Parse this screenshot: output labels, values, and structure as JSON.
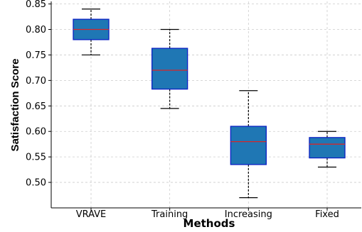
{
  "chart_data": {
    "type": "box",
    "title": "",
    "xlabel": "Methods",
    "ylabel": "Satisfaction Score",
    "categories": [
      "VRAVE",
      "Training",
      "Increasing",
      "Fixed"
    ],
    "yticks": [
      "0.50",
      "0.55",
      "0.60",
      "0.65",
      "0.70",
      "0.75",
      "0.80",
      "0.85"
    ],
    "ylim": [
      0.45,
      0.855
    ],
    "grid": true,
    "boxes": [
      {
        "category": "VRAVE",
        "whisker_low": 0.75,
        "q1": 0.78,
        "median": 0.8,
        "q3": 0.82,
        "whisker_high": 0.84
      },
      {
        "category": "Training",
        "whisker_low": 0.645,
        "q1": 0.683,
        "median": 0.72,
        "q3": 0.763,
        "whisker_high": 0.8
      },
      {
        "category": "Increasing",
        "whisker_low": 0.47,
        "q1": 0.535,
        "median": 0.58,
        "q3": 0.61,
        "whisker_high": 0.68
      },
      {
        "category": "Fixed",
        "whisker_low": 0.53,
        "q1": 0.548,
        "median": 0.575,
        "q3": 0.588,
        "whisker_high": 0.6
      }
    ],
    "colors": {
      "box_fill": "#1f77b4",
      "box_edge": "#0a1fc4",
      "median": "#d62728",
      "whisker": "#000000",
      "grid": "#cccccc",
      "axis": "#000000"
    }
  }
}
